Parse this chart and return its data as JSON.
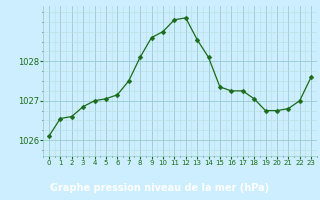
{
  "x": [
    0,
    1,
    2,
    3,
    4,
    5,
    6,
    7,
    8,
    9,
    10,
    11,
    12,
    13,
    14,
    15,
    16,
    17,
    18,
    19,
    20,
    21,
    22,
    23
  ],
  "y": [
    1026.1,
    1026.55,
    1026.6,
    1026.85,
    1027.0,
    1027.05,
    1027.15,
    1027.5,
    1028.1,
    1028.6,
    1028.75,
    1029.05,
    1029.1,
    1028.55,
    1028.1,
    1027.35,
    1027.25,
    1027.25,
    1027.05,
    1026.75,
    1026.75,
    1026.8,
    1027.0,
    1027.6
  ],
  "line_color": "#1a6b1a",
  "marker": "D",
  "marker_size": 2.5,
  "bg_color": "#cceeff",
  "bottom_bar_color": "#1a6b1a",
  "grid_color_major": "#99cccc",
  "grid_color_minor": "#bbdddd",
  "xlabel": "Graphe pression niveau de la mer (hPa)",
  "xlabel_color": "#ffffff",
  "xlabel_fontsize": 7,
  "tick_color": "#1a6b1a",
  "tick_fontsize": 6,
  "ylim": [
    1025.6,
    1029.4
  ],
  "yticks": [
    1026,
    1027,
    1028
  ],
  "xlim": [
    -0.5,
    23.5
  ],
  "xticks": [
    0,
    1,
    2,
    3,
    4,
    5,
    6,
    7,
    8,
    9,
    10,
    11,
    12,
    13,
    14,
    15,
    16,
    17,
    18,
    19,
    20,
    21,
    22,
    23
  ],
  "bottom_bar_height": 0.13
}
